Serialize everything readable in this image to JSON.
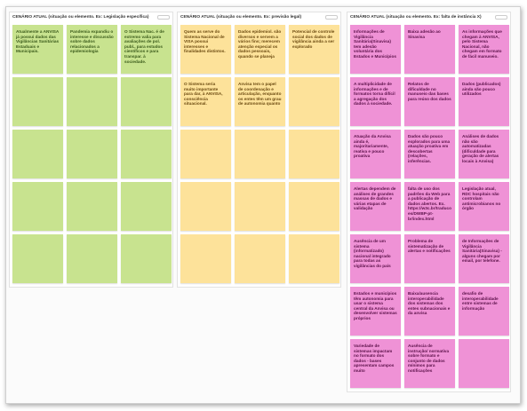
{
  "frames": [
    {
      "title": "CENÁRIO ATUAL (situação ou elemento. Ex: Legislação específica)",
      "color": "#c8e38f",
      "text_color": "#3a5a1a",
      "notes": [
        [
          "Atualmente a ANVISA já possui dados das Vigilâncias Sanitárias Estaduais e Municipais.",
          "Pandemia expandiu o interesse e discussão sobre dados relacionados a epidemiologia",
          "O Sistema Nac. é de extremo valia para avaliações de pol. publ., para estudos científicos e para transpar. à sociedade."
        ],
        [
          null,
          null,
          null
        ],
        [
          null,
          null,
          null
        ],
        [
          null,
          null,
          null
        ],
        [
          null,
          null,
          null
        ]
      ]
    },
    {
      "title": "CENÁRIO ATUAL (situação ou elemento. Ex: previsão legal)",
      "color": "#fde29a",
      "text_color": "#6b4a10",
      "notes": [
        [
          "Quem as serve do Sistema Nacional de VISA possui interesses e finalidades distintos.",
          "Dados epidemiol. são diversos e servem a vários fins; merecem atenção especial os dados pessoais, quando se planeja",
          "Potencial de controle social dos dados de vigilância ainda a ser explorado"
        ],
        [
          "O Sistema seria muito importante para dar, à ANVISA, consciência situacional.",
          "Anvisa tem o papel de coordenação e articulação, enquanto os entes têm um grau de autonomia quanto",
          null
        ],
        [
          null,
          null,
          null
        ],
        [
          null,
          null,
          null
        ],
        [
          null,
          null,
          null
        ]
      ]
    },
    {
      "title": "CENÁRIO ATUAL (situação ou elemento. Ex: falta de instância X)",
      "color": "#ef92d6",
      "text_color": "#5a1048",
      "notes": [
        [
          "Informações de Vigilância Sanitária(Sinavisa) tem adesão voluntária dos Estados e Municípios",
          "Baixa adesão ao Sinavisa",
          "As informações que chegam à ANVISA, pelo Sistema Nacional, não chegam em formato de fácil manuseio."
        ],
        [
          "A multiplicidade de informações e de formatos torna difícil a agregação dos dados à sociedade.",
          "Relatos de dificuldade no manuseio das bases para reúso dos dados",
          "Dados (publicados) ainda são pouco utilizados"
        ],
        [
          "Atuação da Anvisa ainda é, majoritariamente, reativa e pouco proativa",
          "Dados são pouco explorados para uma atuação proativa em descobertas (relações, inferências.",
          "Análises de dados não são automatizadas (dificuldade para geração de alertas locais à Anvisa)"
        ],
        [
          "Alertas dependem de análises de grandes massas de dados e várias etapas de validação",
          "falta de uso dos padrões da Web para a publicação de dados abertos. Ex. https://w3c.br/traducoes/DWBP-pt-br/index.html",
          "Legislação atual, RDC hospitais não controlam antimicrobianos no órgão"
        ],
        [
          "Ausência de um sistema (informatizado) nacional integrado para todas as vigilâncias do país",
          "Problema de sistematização de alertas e notificações",
          "de Informações de Vigilância Sanitária(Sinavisa) - alguns chegam por email, por telefone."
        ],
        [
          "Estados e municípios têm autonomia para usar o sistema central da Anvisa ou desenvolver sistemas próprios",
          "Baixa/ausencia interoperabilidade dos sistemas dos entes subnacionais e da anvisa",
          "desafio de interoperabilidade entre sistemas de informação"
        ],
        [
          "Variedade de sistemas impactam no formato dos dados - bases apresentam campos muito",
          "Ausência de instrução/ normativa sobre formato e conjunto de dados mínimos para notificações",
          null
        ]
      ]
    }
  ]
}
